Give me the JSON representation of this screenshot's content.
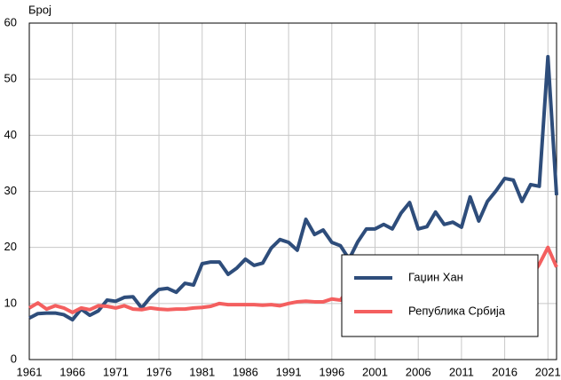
{
  "chart_data": {
    "type": "line",
    "y_label": "Број",
    "x": [
      1961,
      1962,
      1963,
      1964,
      1965,
      1966,
      1967,
      1968,
      1969,
      1970,
      1971,
      1972,
      1973,
      1974,
      1975,
      1976,
      1977,
      1978,
      1979,
      1980,
      1981,
      1982,
      1983,
      1984,
      1985,
      1986,
      1987,
      1988,
      1989,
      1990,
      1991,
      1992,
      1993,
      1994,
      1995,
      1996,
      1997,
      1998,
      1999,
      2000,
      2001,
      2002,
      2003,
      2004,
      2005,
      2006,
      2007,
      2008,
      2009,
      2010,
      2011,
      2012,
      2013,
      2014,
      2015,
      2016,
      2017,
      2018,
      2019,
      2020,
      2021,
      2022
    ],
    "series": [
      {
        "name": "Гаџин Хан",
        "color": "#2e4d7b",
        "values": [
          7.4,
          8.2,
          8.3,
          8.3,
          8.0,
          7.1,
          9.0,
          7.9,
          8.7,
          10.6,
          10.4,
          11.1,
          11.2,
          9.2,
          11.1,
          12.5,
          12.7,
          12.0,
          13.6,
          13.3,
          17.1,
          17.4,
          17.4,
          15.2,
          16.3,
          17.9,
          16.8,
          17.2,
          19.9,
          21.4,
          20.9,
          19.5,
          25.0,
          22.3,
          23.1,
          20.9,
          20.3,
          17.9,
          21.0,
          23.3,
          23.3,
          24.1,
          23.3,
          26.1,
          28.0,
          23.3,
          23.7,
          26.3,
          24.1,
          24.5,
          23.6,
          29.0,
          24.7,
          28.2,
          30.1,
          32.3,
          32.0,
          28.2,
          31.2,
          30.9,
          54.0,
          29.3
        ]
      },
      {
        "name": "Република Србија",
        "color": "#f45f5f",
        "values": [
          9.2,
          10.1,
          9.0,
          9.6,
          9.2,
          8.4,
          9.2,
          8.9,
          9.6,
          9.5,
          9.2,
          9.6,
          9.0,
          8.9,
          9.2,
          9.0,
          8.9,
          9.0,
          9.0,
          9.2,
          9.3,
          9.5,
          10.0,
          9.8,
          9.8,
          9.8,
          9.8,
          9.7,
          9.8,
          9.6,
          10.0,
          10.3,
          10.4,
          10.3,
          10.3,
          10.8,
          10.6,
          12.7,
          13.0,
          13.3,
          13.5,
          13.7,
          13.8,
          14.0,
          14.3,
          14.0,
          14.0,
          14.1,
          14.2,
          14.2,
          14.3,
          14.3,
          14.2,
          14.3,
          14.6,
          14.3,
          14.8,
          14.6,
          14.6,
          17.0,
          20.0,
          16.5
        ]
      }
    ],
    "xlim": [
      1961,
      2022
    ],
    "xticks": [
      1961,
      1966,
      1971,
      1976,
      1981,
      1986,
      1991,
      1996,
      2001,
      2006,
      2011,
      2016,
      2021
    ],
    "ylim": [
      0,
      60
    ],
    "yticks": [
      0,
      10,
      20,
      30,
      40,
      50,
      60
    ],
    "grid": true
  }
}
